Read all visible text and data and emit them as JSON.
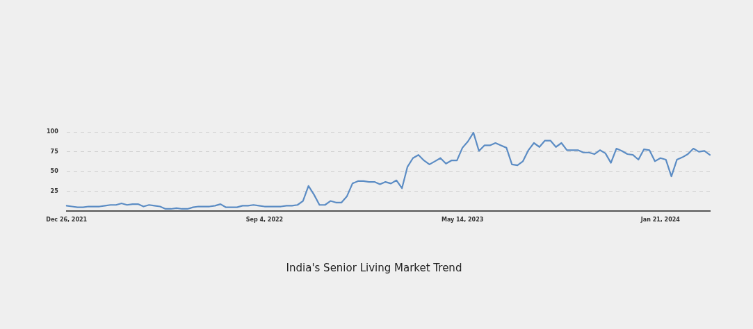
{
  "chart_data": {
    "type": "line",
    "title": "India's Senior Living Market Trend",
    "categories": [
      "Dec 26, 2021",
      null,
      null,
      null,
      null,
      null,
      null,
      null,
      null,
      null,
      null,
      null,
      null,
      null,
      null,
      null,
      null,
      null,
      null,
      null,
      null,
      null,
      null,
      null,
      null,
      null,
      null,
      null,
      null,
      null,
      null,
      null,
      null,
      null,
      null,
      null,
      "Sep 4, 2022",
      null,
      null,
      null,
      null,
      null,
      null,
      null,
      null,
      null,
      null,
      null,
      null,
      null,
      null,
      null,
      null,
      null,
      null,
      null,
      null,
      null,
      null,
      null,
      null,
      null,
      null,
      null,
      null,
      null,
      null,
      null,
      null,
      null,
      null,
      null,
      "May 14, 2023",
      null,
      null,
      null,
      null,
      null,
      null,
      null,
      null,
      null,
      null,
      null,
      null,
      null,
      null,
      null,
      null,
      null,
      null,
      null,
      null,
      null,
      null,
      null,
      null,
      null,
      null,
      null,
      null,
      null,
      null,
      null,
      null,
      null,
      null,
      null,
      "Jan 21, 2024",
      null,
      null,
      null,
      null,
      null,
      null,
      null,
      null,
      null
    ],
    "series": [
      {
        "color": "#5b8cc4",
        "values": [
          7,
          6,
          5,
          5,
          6,
          6,
          6,
          7,
          8,
          8,
          10,
          8,
          9,
          9,
          6,
          8,
          7,
          6,
          3,
          3,
          4,
          3,
          3,
          5,
          6,
          6,
          6,
          7,
          9,
          5,
          5,
          5,
          7,
          7,
          8,
          7,
          6,
          6,
          6,
          6,
          7,
          7,
          8,
          13,
          32,
          21,
          8,
          8,
          13,
          11,
          11,
          19,
          35,
          38,
          38,
          37,
          37,
          34,
          37,
          35,
          39,
          29,
          56,
          67,
          71,
          64,
          59,
          63,
          67,
          60,
          64,
          64,
          80,
          88,
          99,
          76,
          83,
          83,
          86,
          83,
          80,
          59,
          58,
          63,
          77,
          86,
          81,
          89,
          89,
          81,
          86,
          77,
          77,
          77,
          74,
          74,
          72,
          77,
          73,
          61,
          79,
          76,
          72,
          71,
          65,
          78,
          77,
          63,
          67,
          65,
          44,
          65,
          68,
          72,
          79,
          75,
          76,
          71
        ]
      }
    ],
    "ylim": [
      0,
      100
    ],
    "yticks": [
      25,
      50,
      75,
      100
    ],
    "grid": "y",
    "legend": false,
    "marker": "none",
    "line_style": "solid"
  }
}
